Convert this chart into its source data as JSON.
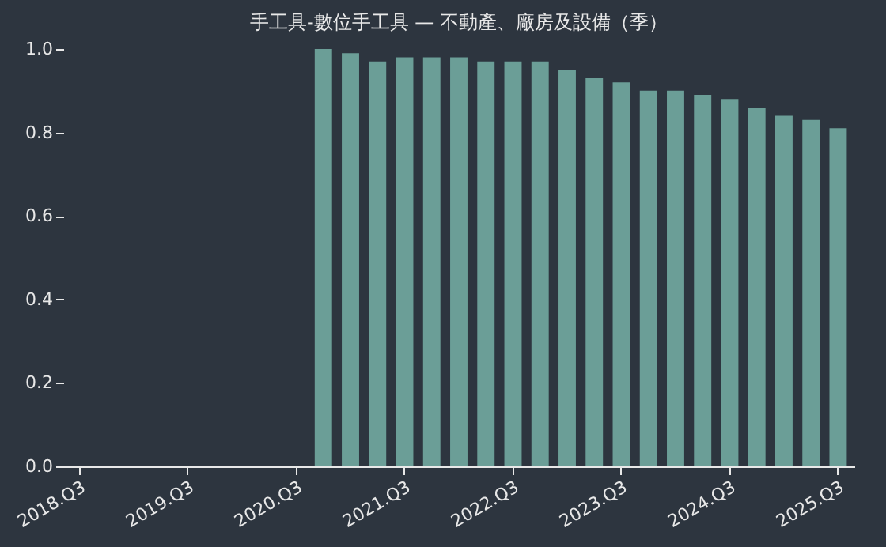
{
  "chart_data": {
    "type": "bar",
    "title": "手工具-數位手工具 — 不動產、廠房及設備（季）",
    "categories": [
      "2018.Q3",
      null,
      null,
      null,
      "2019.Q3",
      null,
      null,
      null,
      "2020.Q3",
      null,
      null,
      null,
      "2021.Q3",
      null,
      null,
      null,
      "2022.Q3",
      null,
      null,
      null,
      "2023.Q3",
      null,
      null,
      null,
      "2024.Q3",
      null,
      null,
      null,
      "2025.Q3"
    ],
    "values": [
      null,
      null,
      null,
      null,
      null,
      null,
      null,
      null,
      null,
      1.0,
      0.99,
      0.97,
      0.98,
      0.98,
      0.98,
      0.97,
      0.97,
      0.97,
      0.95,
      0.93,
      0.92,
      0.9,
      0.9,
      0.89,
      0.88,
      0.86,
      0.84,
      0.83,
      0.81
    ],
    "color": "#6b9e97",
    "ylim": [
      0,
      1
    ],
    "yticks": [
      {
        "value": 0,
        "label": "0.0"
      },
      0.2,
      0.4,
      0.6,
      0.8,
      {
        "value": 1,
        "label": "1.0"
      }
    ],
    "grid": false
  }
}
